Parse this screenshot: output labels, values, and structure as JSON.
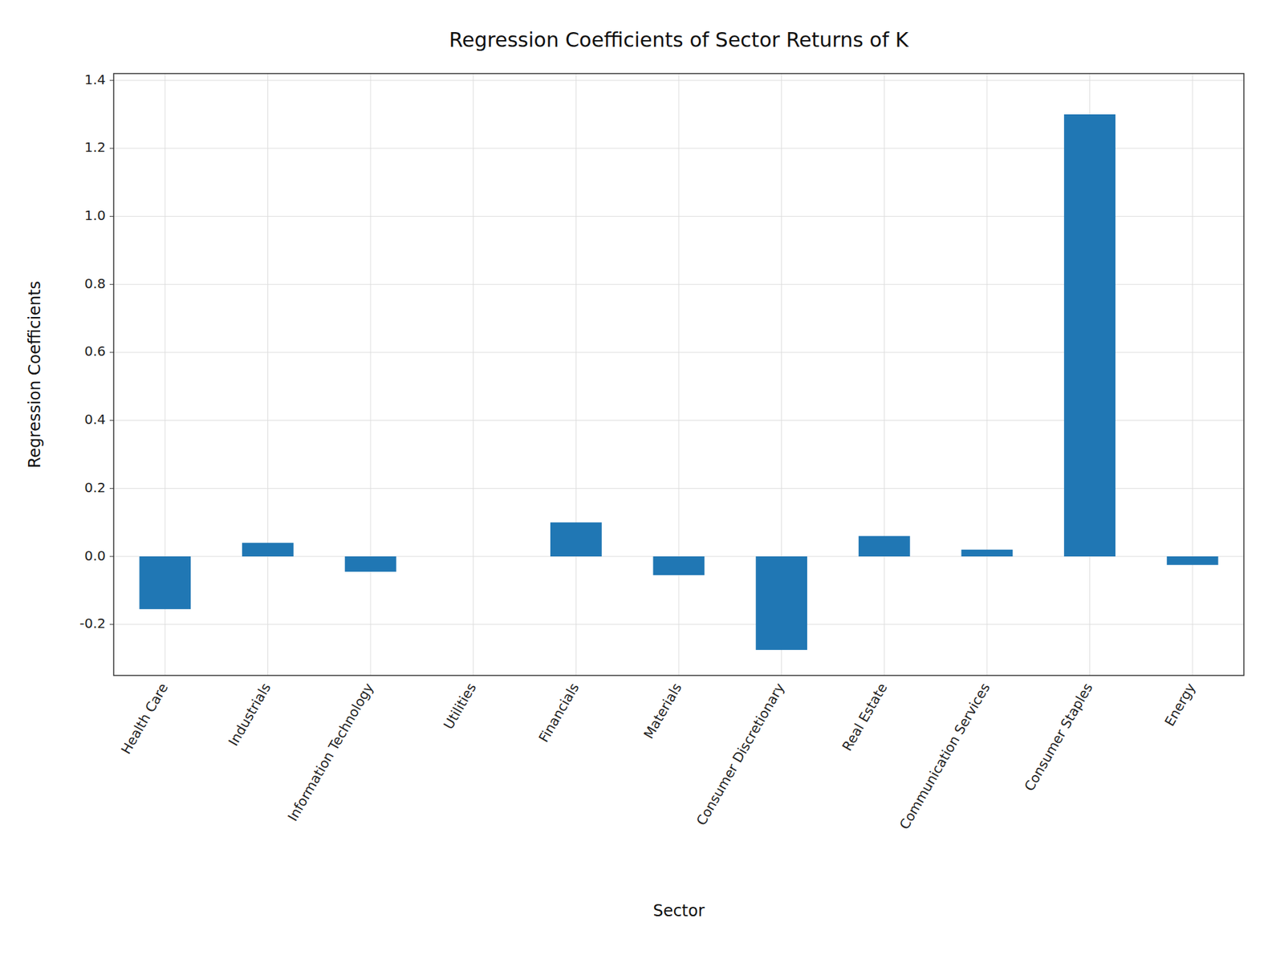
{
  "chart_data": {
    "type": "bar",
    "title": "Regression Coefficients of Sector Returns of K",
    "xlabel": "Sector",
    "ylabel": "Regression Coefficients",
    "categories": [
      "Health Care",
      "Industrials",
      "Information Technology",
      "Utilities",
      "Financials",
      "Materials",
      "Consumer Discretionary",
      "Real Estate",
      "Communication Services",
      "Consumer Staples",
      "Energy"
    ],
    "values": [
      -0.155,
      0.04,
      -0.045,
      0,
      0.1,
      -0.055,
      -0.275,
      0.06,
      0.02,
      1.3,
      -0.025
    ],
    "color": "#2077b4",
    "ylim": [
      -0.35,
      1.42
    ],
    "yticks": [
      -0.2,
      {
        "value": 0,
        "label": "0.0"
      },
      0.2,
      0.4,
      0.6,
      0.8,
      {
        "value": 1,
        "label": "1.0"
      },
      1.2,
      1.4
    ],
    "grid": true
  }
}
